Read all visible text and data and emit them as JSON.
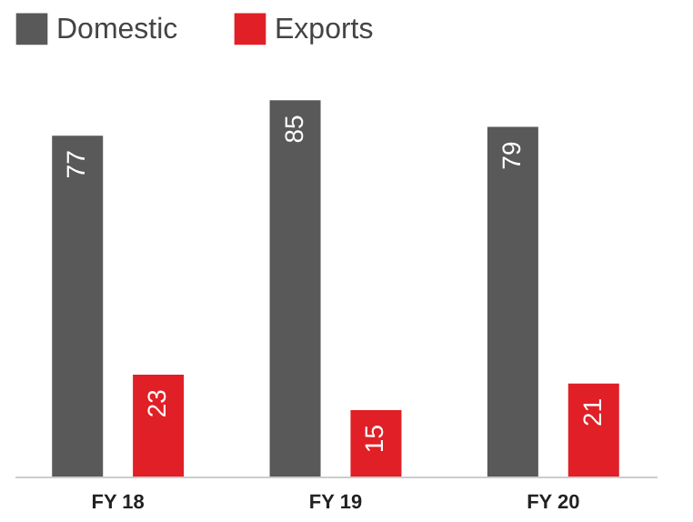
{
  "chart_data": {
    "type": "bar",
    "categories": [
      "FY 18",
      "FY 19",
      "FY 20"
    ],
    "series": [
      {
        "name": "Domestic",
        "color": "#595959",
        "values": [
          77,
          85,
          79
        ]
      },
      {
        "name": "Exports",
        "color": "#e01f26",
        "values": [
          23,
          15,
          21
        ]
      }
    ],
    "data_labels": true,
    "legend": "top left",
    "tick_labels": "x",
    "grid": false
  }
}
